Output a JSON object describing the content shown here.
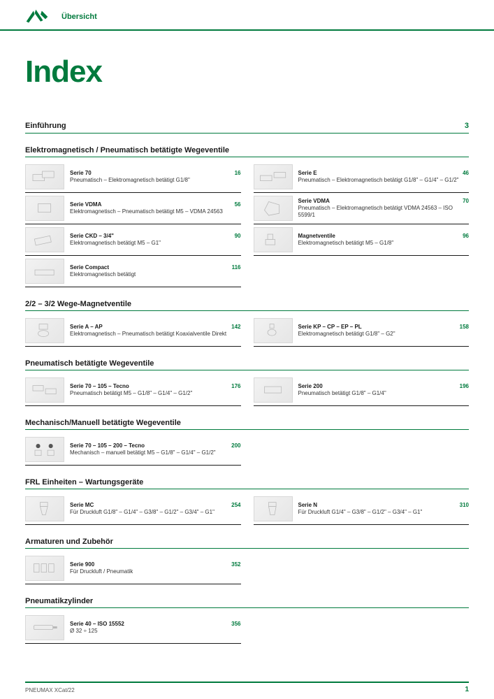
{
  "colors": {
    "brand_green": "#007a3d",
    "rule_black": "#1a1a1a",
    "thumb_fill": "#ececec",
    "thumb_stroke": "#b8b8b8"
  },
  "header": {
    "overline": "Übersicht"
  },
  "title": "Index",
  "intro": {
    "label": "Einführung",
    "page": "3"
  },
  "sections": [
    {
      "title": "Elektromagnetisch / Pneumatisch betätigte Wegeventile",
      "left": [
        {
          "name": "Serie 70",
          "desc": "Pneumatisch – Elektromagnetisch betätigt G1/8\"",
          "page": "16",
          "icon": "valve-block-a"
        },
        {
          "name": "Serie VDMA",
          "desc": "Elektromagnetisch – Pneumatisch betätigt M5 – VDMA 24563",
          "page": "56",
          "icon": "valve-single"
        },
        {
          "name": "Serie CKD – 3/4\"",
          "desc": "Elektromagnetisch betätigt M5 – G1\"",
          "page": "90",
          "icon": "valve-angled"
        },
        {
          "name": "Serie Compact",
          "desc": "Elektromagnetisch betätigt",
          "page": "116",
          "icon": "valve-flat"
        }
      ],
      "right": [
        {
          "name": "Serie E",
          "desc": "Pneumatisch – Elektromagnetisch betätigt G1/8\" – G1/4\" – G1/2\"",
          "page": "46",
          "icon": "valve-double"
        },
        {
          "name": "Serie VDMA",
          "desc": "Pneumatisch – Elektromagnetisch betätigt VDMA 24563 – ISO 5599/1",
          "page": "70",
          "icon": "valve-iso"
        },
        {
          "name": "Magnetventile",
          "desc": "Elektromagnetisch betätigt M5 – G1/8\"",
          "page": "96",
          "icon": "valve-solenoid"
        }
      ]
    },
    {
      "title": "2/2 – 3/2 Wege-Magnetventile",
      "left": [
        {
          "name": "Serie A – AP",
          "desc": "Elektromagnetisch – Pneumatisch betätigt Koaxialventile Direkt",
          "page": "142",
          "icon": "coax-valve"
        }
      ],
      "right": [
        {
          "name": "Serie KP – CP – EP – PL",
          "desc": "Elektromagnetisch betätigt G1/8\" – G2\"",
          "page": "158",
          "icon": "pilot-valve"
        }
      ]
    },
    {
      "title": "Pneumatisch betätigte Wegeventile",
      "left": [
        {
          "name": "Serie 70 – 105 – Tecno",
          "desc": "Pneumatisch betätigt M5 – G1/8\" – G1/4\" – G1/2\"",
          "page": "176",
          "icon": "valve-pair"
        }
      ],
      "right": [
        {
          "name": "Serie 200",
          "desc": "Pneumatisch betätigt G1/8\" – G1/4\"",
          "page": "196",
          "icon": "valve-block-b"
        }
      ]
    },
    {
      "title": "Mechanisch/Manuell betätigte Wegeventile",
      "left": [
        {
          "name": "Serie 70 – 105 – 200 – Tecno",
          "desc": "Mechanisch – manuell betätigt M5 – G1/8\" – G1/4\" – G1/2\"",
          "page": "200",
          "icon": "manual-valve"
        }
      ],
      "right": []
    },
    {
      "title": "FRL Einheiten – Wartungsgeräte",
      "left": [
        {
          "name": "Serie MC",
          "desc": "Für Druckluft G1/8\" – G1/4\" – G3/8\" – G1/2\" – G3/4\" – G1\"",
          "page": "254",
          "icon": "filter-reg-a"
        }
      ],
      "right": [
        {
          "name": "Serie N",
          "desc": "Für Druckluft G1/4\" – G3/8\" – G1/2\" – G3/4\" – G1\"",
          "page": "310",
          "icon": "filter-reg-b"
        }
      ]
    },
    {
      "title": "Armaturen und Zubehör",
      "left": [
        {
          "name": "Serie 900",
          "desc": "Für Druckluft / Pneumatik",
          "page": "352",
          "icon": "fittings"
        }
      ],
      "right": []
    },
    {
      "title": "Pneumatikzylinder",
      "left": [
        {
          "name": "Serie 40 – ISO 15552",
          "desc": "Ø 32 ÷ 125",
          "page": "356",
          "icon": "cylinder"
        }
      ],
      "right": []
    }
  ],
  "footer": {
    "catalog": "PNEUMAX XCat/22",
    "pagenum": "1"
  }
}
